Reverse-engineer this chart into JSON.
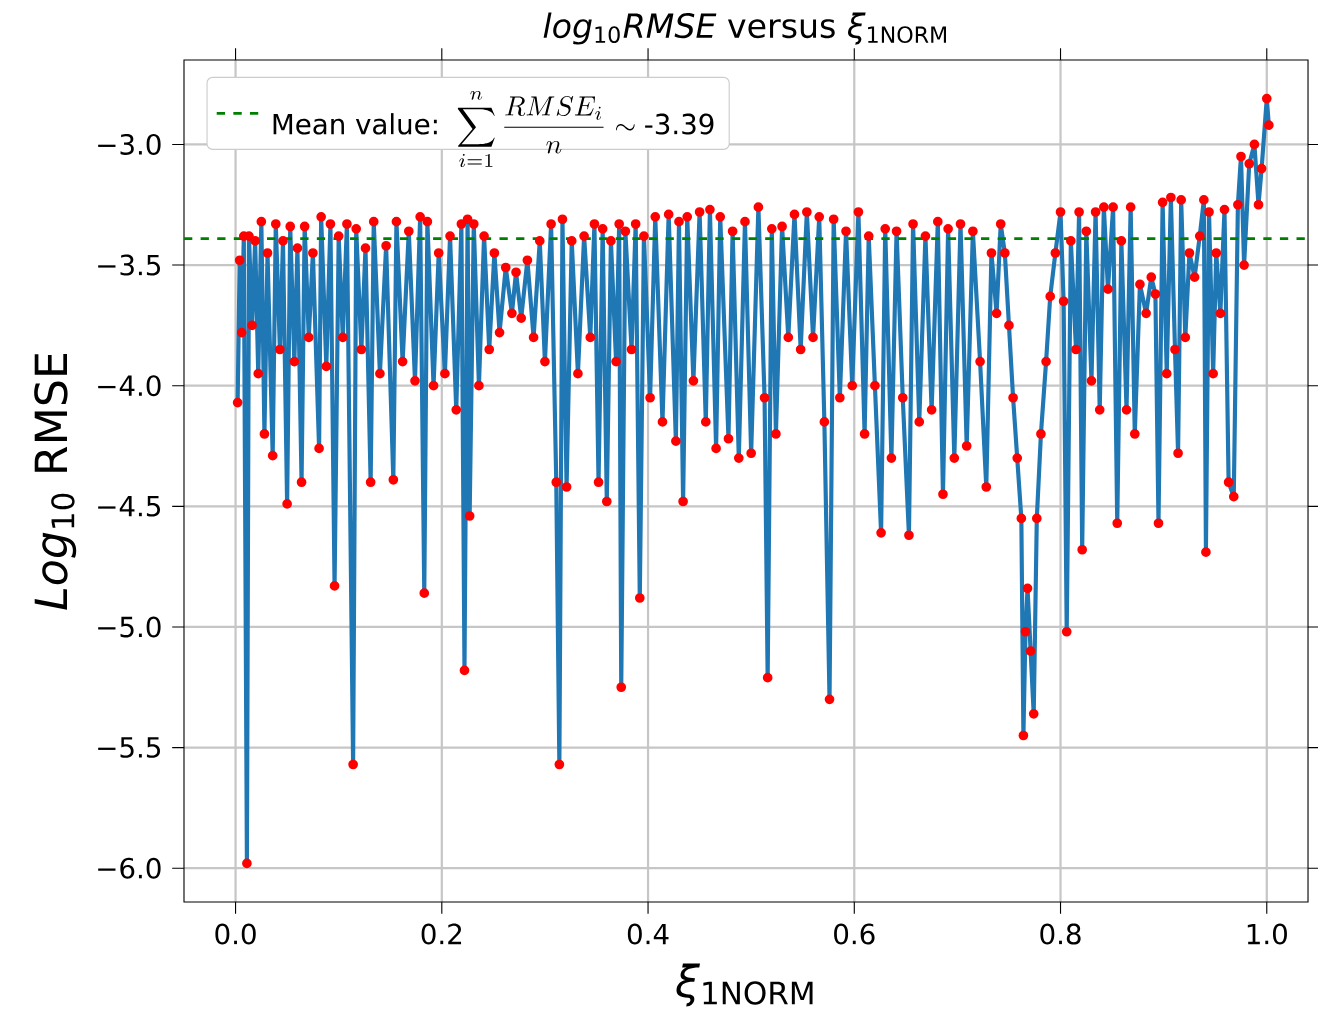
{
  "chart_data": {
    "type": "line",
    "title": "*log*$_{10}$*RMSE* versus *ξ*$_{1NORM}$",
    "xlabel": "*ξ*$_{1NORM}$",
    "ylabel": "*Log*$_{10}$ RMSE",
    "xlim": [
      -0.05,
      1.04
    ],
    "xticks": [
      {
        "value": 0,
        "label": "0.0"
      },
      0.2,
      0.4,
      0.6,
      0.8,
      {
        "value": 1,
        "label": "1.0"
      }
    ],
    "ylim": [
      -6.14,
      -2.65
    ],
    "yticks": [
      {
        "value": -6,
        "label": "−6.0"
      },
      {
        "value": -5.5,
        "label": "−5.5"
      },
      {
        "value": -5,
        "label": "−5.0"
      },
      {
        "value": -4.5,
        "label": "−4.5"
      },
      {
        "value": -4,
        "label": "−4.0"
      },
      {
        "value": -3.5,
        "label": "−3.5"
      },
      {
        "value": -3,
        "label": "−3.0"
      }
    ],
    "grid": true,
    "legend": "top left",
    "marker": "circle",
    "line_style": "solid",
    "ref_lines": [
      {
        "axis": "y",
        "value": -3.39,
        "label": "\\text{Mean value: }\\sum_{i=1}^{n}\\frac{RMSE_i}{n}\\sim\\text{-3.39}",
        "color": "#008000",
        "line_style": "dashed"
      }
    ],
    "series": [
      {
        "color": "#1f77b4",
        "x": [
          0.002,
          0.004,
          0.006,
          0.008,
          0.011,
          0.013,
          0.016,
          0.019,
          0.022,
          0.025,
          0.028,
          0.031,
          0.036,
          0.039,
          0.043,
          0.046,
          0.05,
          0.053,
          0.057,
          0.06,
          0.064,
          0.067,
          0.071,
          0.075,
          0.081,
          0.083,
          0.088,
          0.092,
          0.096,
          0.1,
          0.104,
          0.108,
          0.114,
          0.117,
          0.122,
          0.126,
          0.131,
          0.134,
          0.14,
          0.146,
          0.153,
          0.156,
          0.162,
          0.168,
          0.174,
          0.179,
          0.183,
          0.186,
          0.192,
          0.197,
          0.203,
          0.208,
          0.214,
          0.219,
          0.222,
          0.225,
          0.227,
          0.231,
          0.236,
          0.241,
          0.246,
          0.251,
          0.256,
          0.262,
          0.268,
          0.272,
          0.277,
          0.283,
          0.289,
          0.295,
          0.3,
          0.306,
          0.311,
          0.314,
          0.317,
          0.321,
          0.326,
          0.332,
          0.338,
          0.344,
          0.348,
          0.352,
          0.356,
          0.36,
          0.364,
          0.369,
          0.372,
          0.374,
          0.378,
          0.384,
          0.388,
          0.392,
          0.396,
          0.402,
          0.407,
          0.414,
          0.42,
          0.427,
          0.43,
          0.434,
          0.438,
          0.444,
          0.45,
          0.456,
          0.46,
          0.466,
          0.47,
          0.478,
          0.482,
          0.488,
          0.494,
          0.5,
          0.507,
          0.513,
          0.516,
          0.52,
          0.524,
          0.53,
          0.536,
          0.542,
          0.548,
          0.554,
          0.56,
          0.566,
          0.571,
          0.576,
          0.58,
          0.586,
          0.592,
          0.598,
          0.604,
          0.61,
          0.614,
          0.62,
          0.626,
          0.63,
          0.636,
          0.641,
          0.647,
          0.653,
          0.657,
          0.663,
          0.669,
          0.675,
          0.681,
          0.686,
          0.691,
          0.697,
          0.703,
          0.709,
          0.715,
          0.722,
          0.728,
          0.733,
          0.738,
          0.742,
          0.746,
          0.75,
          0.754,
          0.758,
          0.762,
          0.764,
          0.766,
          0.768,
          0.771,
          0.774,
          0.777,
          0.781,
          0.786,
          0.79,
          0.795,
          0.8,
          0.803,
          0.806,
          0.81,
          0.815,
          0.818,
          0.821,
          0.825,
          0.83,
          0.834,
          0.838,
          0.842,
          0.846,
          0.851,
          0.855,
          0.859,
          0.864,
          0.868,
          0.872,
          0.877,
          0.883,
          0.888,
          0.892,
          0.895,
          0.899,
          0.903,
          0.907,
          0.911,
          0.914,
          0.917,
          0.921,
          0.925,
          0.93,
          0.935,
          0.939,
          0.941,
          0.944,
          0.948,
          0.951,
          0.955,
          0.959,
          0.963,
          0.968,
          0.972,
          0.975,
          0.978,
          0.983,
          0.988,
          0.992,
          0.995,
          1.0,
          1.002
        ],
        "values": [
          -4.07,
          -3.48,
          -3.78,
          -3.38,
          -5.98,
          -3.38,
          -3.75,
          -3.4,
          -3.95,
          -3.32,
          -4.2,
          -3.45,
          -4.29,
          -3.33,
          -3.85,
          -3.4,
          -4.49,
          -3.34,
          -3.9,
          -3.43,
          -4.4,
          -3.34,
          -3.8,
          -3.45,
          -4.26,
          -3.3,
          -3.92,
          -3.33,
          -4.83,
          -3.38,
          -3.8,
          -3.33,
          -5.57,
          -3.35,
          -3.85,
          -3.43,
          -4.4,
          -3.32,
          -3.95,
          -3.42,
          -4.39,
          -3.32,
          -3.9,
          -3.36,
          -3.98,
          -3.3,
          -4.86,
          -3.32,
          -4.0,
          -3.45,
          -3.95,
          -3.38,
          -4.1,
          -3.33,
          -5.18,
          -3.31,
          -4.54,
          -3.33,
          -4.0,
          -3.38,
          -3.85,
          -3.45,
          -3.78,
          -3.51,
          -3.7,
          -3.53,
          -3.72,
          -3.48,
          -3.8,
          -3.4,
          -3.9,
          -3.33,
          -4.4,
          -5.57,
          -3.31,
          -4.42,
          -3.4,
          -3.95,
          -3.38,
          -3.8,
          -3.33,
          -4.4,
          -3.35,
          -4.48,
          -3.4,
          -3.9,
          -3.33,
          -5.25,
          -3.36,
          -3.85,
          -3.33,
          -4.88,
          -3.38,
          -4.05,
          -3.3,
          -4.15,
          -3.29,
          -4.23,
          -3.32,
          -4.48,
          -3.3,
          -3.98,
          -3.28,
          -4.15,
          -3.27,
          -4.26,
          -3.3,
          -4.22,
          -3.36,
          -4.3,
          -3.32,
          -4.28,
          -3.26,
          -4.05,
          -5.21,
          -3.35,
          -4.2,
          -3.34,
          -3.8,
          -3.29,
          -3.85,
          -3.28,
          -3.8,
          -3.3,
          -4.15,
          -5.3,
          -3.31,
          -4.05,
          -3.36,
          -4.0,
          -3.28,
          -4.2,
          -3.38,
          -4.0,
          -4.61,
          -3.35,
          -4.3,
          -3.36,
          -4.05,
          -4.62,
          -3.33,
          -4.15,
          -3.38,
          -4.1,
          -3.32,
          -4.45,
          -3.35,
          -4.3,
          -3.33,
          -4.25,
          -3.36,
          -3.9,
          -4.42,
          -3.45,
          -3.7,
          -3.33,
          -3.45,
          -3.75,
          -4.05,
          -4.3,
          -4.55,
          -5.45,
          -5.02,
          -4.84,
          -5.1,
          -5.36,
          -4.55,
          -4.2,
          -3.9,
          -3.63,
          -3.45,
          -3.28,
          -3.65,
          -5.02,
          -3.4,
          -3.85,
          -3.28,
          -4.68,
          -3.36,
          -3.98,
          -3.28,
          -4.1,
          -3.26,
          -3.6,
          -3.26,
          -4.57,
          -3.4,
          -4.1,
          -3.26,
          -4.2,
          -3.58,
          -3.7,
          -3.55,
          -3.62,
          -4.57,
          -3.24,
          -3.95,
          -3.22,
          -3.85,
          -4.28,
          -3.23,
          -3.8,
          -3.45,
          -3.55,
          -3.38,
          -3.23,
          -4.69,
          -3.28,
          -3.95,
          -3.45,
          -3.7,
          -3.27,
          -4.4,
          -4.46,
          -3.25,
          -3.05,
          -3.5,
          -3.08,
          -3.0,
          -3.25,
          -3.1,
          -2.81,
          -2.92
        ]
      }
    ]
  }
}
